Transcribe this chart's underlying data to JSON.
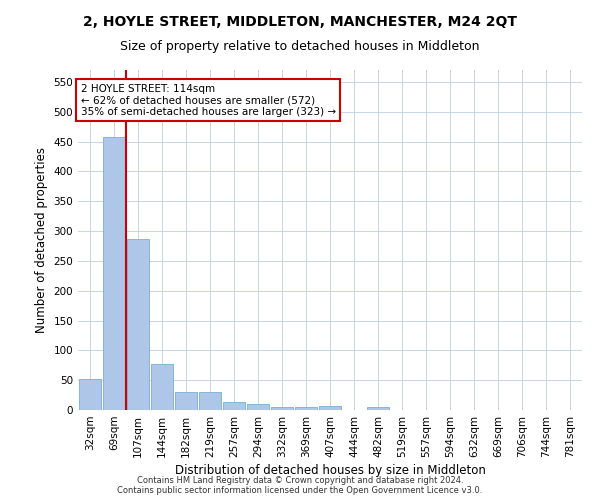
{
  "title": "2, HOYLE STREET, MIDDLETON, MANCHESTER, M24 2QT",
  "subtitle": "Size of property relative to detached houses in Middleton",
  "xlabel": "Distribution of detached houses by size in Middleton",
  "ylabel": "Number of detached properties",
  "footer_line1": "Contains HM Land Registry data © Crown copyright and database right 2024.",
  "footer_line2": "Contains public sector information licensed under the Open Government Licence v3.0.",
  "categories": [
    "32sqm",
    "69sqm",
    "107sqm",
    "144sqm",
    "182sqm",
    "219sqm",
    "257sqm",
    "294sqm",
    "332sqm",
    "369sqm",
    "407sqm",
    "444sqm",
    "482sqm",
    "519sqm",
    "557sqm",
    "594sqm",
    "632sqm",
    "669sqm",
    "706sqm",
    "744sqm",
    "781sqm"
  ],
  "values": [
    52,
    457,
    287,
    77,
    30,
    30,
    13,
    10,
    5,
    5,
    6,
    0,
    5,
    0,
    0,
    0,
    0,
    0,
    0,
    0,
    0
  ],
  "bar_color": "#aec6e8",
  "bar_edge_color": "#7badd1",
  "red_line_index": 1.5,
  "red_line_label": "2 HOYLE STREET: 114sqm",
  "annotation_line2": "← 62% of detached houses are smaller (572)",
  "annotation_line3": "35% of semi-detached houses are larger (323) →",
  "annotation_box_color": "#ffffff",
  "annotation_box_edge_color": "#cc0000",
  "red_line_color": "#cc0000",
  "ylim": [
    0,
    570
  ],
  "yticks": [
    0,
    50,
    100,
    150,
    200,
    250,
    300,
    350,
    400,
    450,
    500,
    550
  ],
  "bg_color": "#ffffff",
  "grid_color": "#c8d4e8",
  "title_fontsize": 10,
  "subtitle_fontsize": 9,
  "axis_label_fontsize": 8.5,
  "tick_fontsize": 7.5,
  "annotation_fontsize": 7.5,
  "footer_fontsize": 6
}
